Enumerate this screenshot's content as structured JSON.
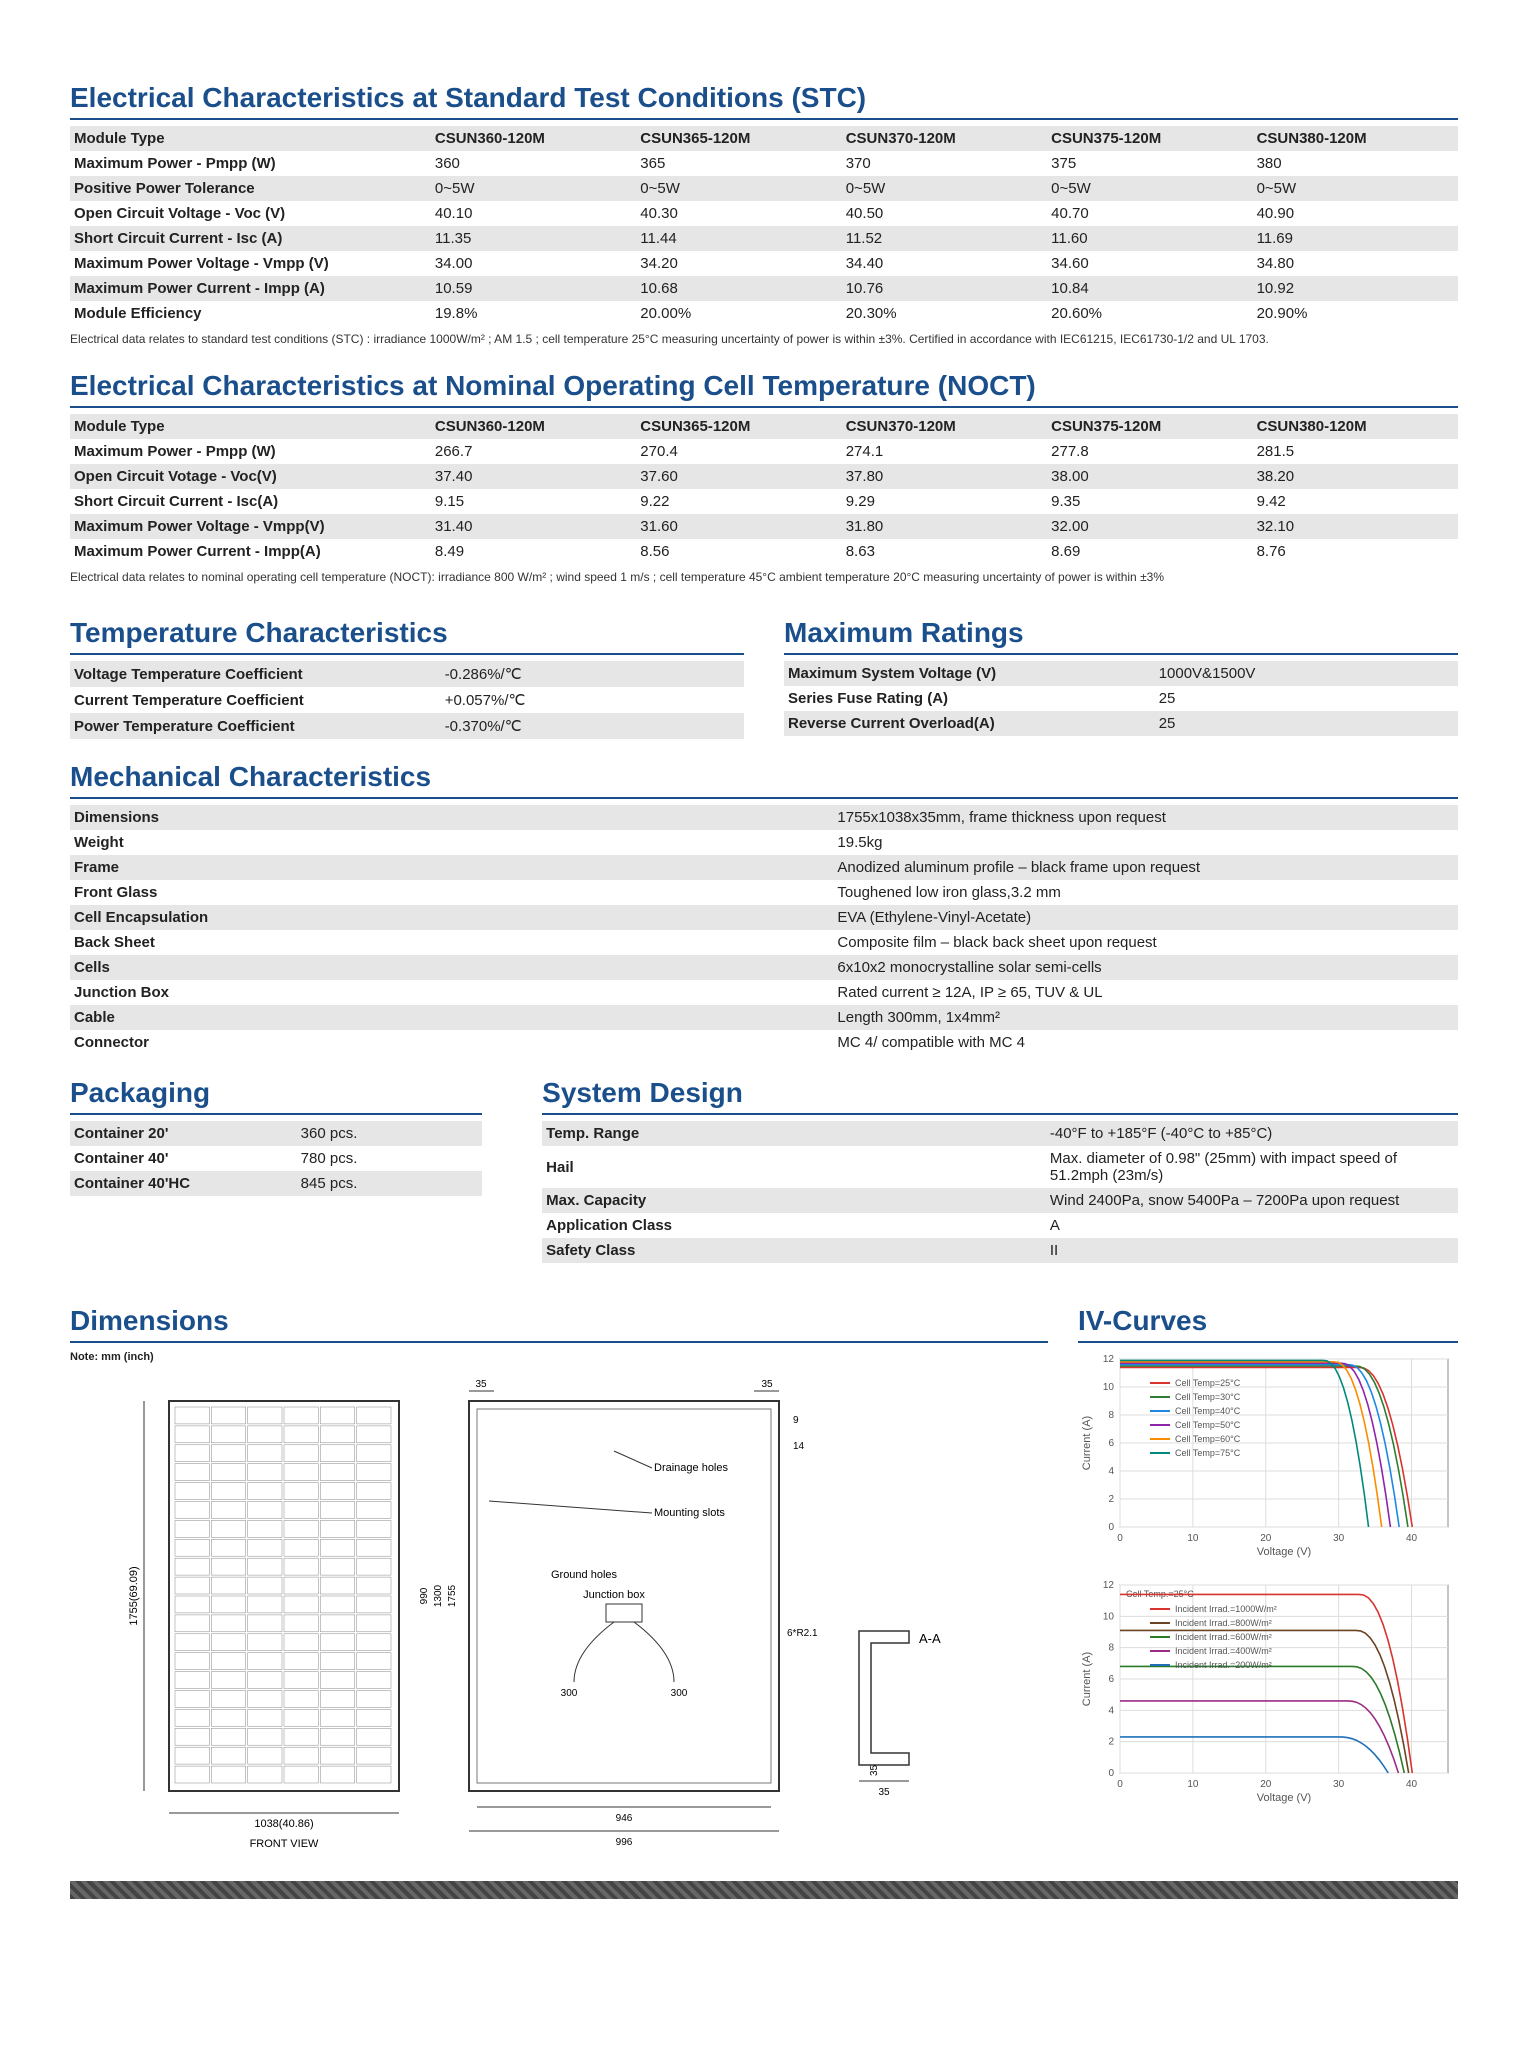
{
  "stc": {
    "title": "Electrical Characteristics at Standard Test Conditions (STC)",
    "headers": [
      "Module Type",
      "CSUN360-120M",
      "CSUN365-120M",
      "CSUN370-120M",
      "CSUN375-120M",
      "CSUN380-120M"
    ],
    "rows": [
      {
        "label": "Maximum Power - Pmpp (W)",
        "v": [
          "360",
          "365",
          "370",
          "375",
          "380"
        ]
      },
      {
        "label": "Positive Power Tolerance",
        "v": [
          "0~5W",
          "0~5W",
          "0~5W",
          "0~5W",
          "0~5W"
        ]
      },
      {
        "label": "Open Circuit Voltage - Voc (V)",
        "v": [
          "40.10",
          "40.30",
          "40.50",
          "40.70",
          "40.90"
        ]
      },
      {
        "label": "Short Circuit Current - Isc (A)",
        "v": [
          "11.35",
          "11.44",
          "11.52",
          "11.60",
          "11.69"
        ]
      },
      {
        "label": "Maximum Power Voltage - Vmpp (V)",
        "v": [
          "34.00",
          "34.20",
          "34.40",
          "34.60",
          "34.80"
        ]
      },
      {
        "label": "Maximum Power Current - Impp (A)",
        "v": [
          "10.59",
          "10.68",
          "10.76",
          "10.84",
          "10.92"
        ]
      },
      {
        "label": "Module Efficiency",
        "v": [
          "19.8%",
          "20.00%",
          "20.30%",
          "20.60%",
          "20.90%"
        ]
      }
    ],
    "footnote": "Electrical data relates to standard test conditions (STC) : irradiance 1000W/m² ; AM 1.5 ; cell temperature 25°C measuring uncertainty of power is within ±3%. Certified in accordance with IEC61215, IEC61730-1/2 and UL 1703."
  },
  "noct": {
    "title": "Electrical Characteristics at Nominal Operating Cell Temperature (NOCT)",
    "headers": [
      "Module Type",
      "CSUN360-120M",
      "CSUN365-120M",
      "CSUN370-120M",
      "CSUN375-120M",
      "CSUN380-120M"
    ],
    "rows": [
      {
        "label": "Maximum Power - Pmpp (W)",
        "v": [
          "266.7",
          "270.4",
          "274.1",
          "277.8",
          "281.5"
        ]
      },
      {
        "label": "Open Circuit Votage - Voc(V)",
        "v": [
          "37.40",
          "37.60",
          "37.80",
          "38.00",
          "38.20"
        ]
      },
      {
        "label": "Short Circuit Current - Isc(A)",
        "v": [
          "9.15",
          "9.22",
          "9.29",
          "9.35",
          "9.42"
        ]
      },
      {
        "label": "Maximum Power Voltage - Vmpp(V)",
        "v": [
          "31.40",
          "31.60",
          "31.80",
          "32.00",
          "32.10"
        ]
      },
      {
        "label": "Maximum Power Current - Impp(A)",
        "v": [
          "8.49",
          "8.56",
          "8.63",
          "8.69",
          "8.76"
        ]
      }
    ],
    "footnote": "Electrical data relates to nominal operating cell temperature (NOCT): irradiance 800 W/m² ; wind speed 1 m/s ; cell temperature 45°C ambient temperature 20°C measuring uncertainty of power is within ±3%"
  },
  "temp": {
    "title": "Temperature Characteristics",
    "rows": [
      {
        "k": "Voltage Temperature Coefficient",
        "v": "-0.286%/℃"
      },
      {
        "k": "Current Temperature Coefficient",
        "v": "+0.057%/℃"
      },
      {
        "k": "Power Temperature Coefficient",
        "v": "-0.370%/℃"
      }
    ]
  },
  "max": {
    "title": "Maximum Ratings",
    "rows": [
      {
        "k": "Maximum System Voltage (V)",
        "v": "1000V&1500V"
      },
      {
        "k": "Series Fuse Rating (A)",
        "v": "25"
      },
      {
        "k": "Reverse Current Overload(A)",
        "v": "25"
      }
    ]
  },
  "mech": {
    "title": "Mechanical Characteristics",
    "rows": [
      {
        "k": "Dimensions",
        "v": "1755x1038x35mm, frame thickness upon request"
      },
      {
        "k": "Weight",
        "v": "19.5kg"
      },
      {
        "k": "Frame",
        "v": "Anodized aluminum profile – black frame upon request"
      },
      {
        "k": "Front Glass",
        "v": "Toughened low iron glass,3.2 mm"
      },
      {
        "k": "Cell Encapsulation",
        "v": "EVA (Ethylene-Vinyl-Acetate)"
      },
      {
        "k": "Back Sheet",
        "v": "Composite film – black back sheet upon request"
      },
      {
        "k": "Cells",
        "v": "6x10x2 monocrystalline solar semi-cells"
      },
      {
        "k": "Junction Box",
        "v": "Rated current ≥ 12A, IP ≥ 65, TUV & UL"
      },
      {
        "k": "Cable",
        "v": "Length 300mm, 1x4mm²"
      },
      {
        "k": "Connector",
        "v": "MC 4/ compatible with MC 4"
      }
    ]
  },
  "pack": {
    "title": "Packaging",
    "rows": [
      {
        "k": "Container 20'",
        "v": "360 pcs."
      },
      {
        "k": "Container 40'",
        "v": "780 pcs."
      },
      {
        "k": "Container 40'HC",
        "v": "845 pcs."
      }
    ]
  },
  "sys": {
    "title": "System Design",
    "rows": [
      {
        "k": "Temp. Range",
        "v": "-40°F to +185°F (-40°C to +85°C)"
      },
      {
        "k": "Hail",
        "v": "Max. diameter of 0.98\" (25mm) with impact speed of 51.2mph (23m/s)"
      },
      {
        "k": "Max. Capacity",
        "v": "Wind 2400Pa, snow 5400Pa – 7200Pa upon request"
      },
      {
        "k": "Application Class",
        "v": "A"
      },
      {
        "k": "Safety Class",
        "v": "II"
      }
    ]
  },
  "dim": {
    "title": "Dimensions",
    "note": "Note: mm (inch)",
    "labels": {
      "h": "1755(69.09)",
      "w": "1038(40.86)",
      "front": "FRONT VIEW",
      "drain": "Drainage holes",
      "mount": "Mounting slots",
      "ground": "Ground holes",
      "jbox": "Junction box",
      "j300l": "300",
      "j300r": "300",
      "d35t": "35",
      "d35r": "35",
      "d9": "9",
      "d14": "14",
      "r": "6*R2.1",
      "h1755": "1755",
      "h1300": "1300",
      "h990": "990",
      "w946": "946",
      "w996": "996",
      "aa": "A-A",
      "p35a": "35",
      "p35b": "35"
    }
  },
  "iv": {
    "title": "IV-Curves",
    "chart1": {
      "xlabel": "Voltage (V)",
      "ylabel": "Current (A)",
      "xlim": [
        0,
        45
      ],
      "ylim": [
        0,
        12
      ],
      "xticks": [
        0,
        10,
        20,
        30,
        40
      ],
      "yticks": [
        0,
        2,
        4,
        6,
        8,
        10,
        12
      ],
      "series": [
        {
          "name": "Cell Temp=25°C",
          "color": "#d9332e",
          "isc": 11.4,
          "voc": 40.1
        },
        {
          "name": "Cell Temp=30°C",
          "color": "#2e7d32",
          "isc": 11.5,
          "voc": 39.5
        },
        {
          "name": "Cell Temp=40°C",
          "color": "#1e88e5",
          "isc": 11.6,
          "voc": 38.3
        },
        {
          "name": "Cell Temp=50°C",
          "color": "#8e24aa",
          "isc": 11.7,
          "voc": 37.1
        },
        {
          "name": "Cell Temp=60°C",
          "color": "#fb8c00",
          "isc": 11.8,
          "voc": 35.9
        },
        {
          "name": "Cell Temp=75°C",
          "color": "#00897b",
          "isc": 11.9,
          "voc": 34.1
        }
      ]
    },
    "chart2": {
      "xlabel": "Voltage (V)",
      "ylabel": "Current (A)",
      "xlim": [
        0,
        45
      ],
      "ylim": [
        0,
        12
      ],
      "xticks": [
        0,
        10,
        20,
        30,
        40
      ],
      "yticks": [
        0,
        2,
        4,
        6,
        8,
        10,
        12
      ],
      "toplabel": "Cell Temp.=25°C",
      "series": [
        {
          "name": "Incident Irrad.=1000W/m²",
          "color": "#d9332e",
          "isc": 11.4,
          "voc": 40.1
        },
        {
          "name": "Incident Irrad.=800W/m²",
          "color": "#6b4423",
          "isc": 9.1,
          "voc": 39.6
        },
        {
          "name": "Incident Irrad.=600W/m²",
          "color": "#2a7a2a",
          "isc": 6.8,
          "voc": 39.0
        },
        {
          "name": "Incident Irrad.=400W/m²",
          "color": "#9b2c85",
          "isc": 4.6,
          "voc": 38.2
        },
        {
          "name": "Incident Irrad.=200W/m²",
          "color": "#1f70b8",
          "isc": 2.3,
          "voc": 36.8
        }
      ]
    }
  }
}
